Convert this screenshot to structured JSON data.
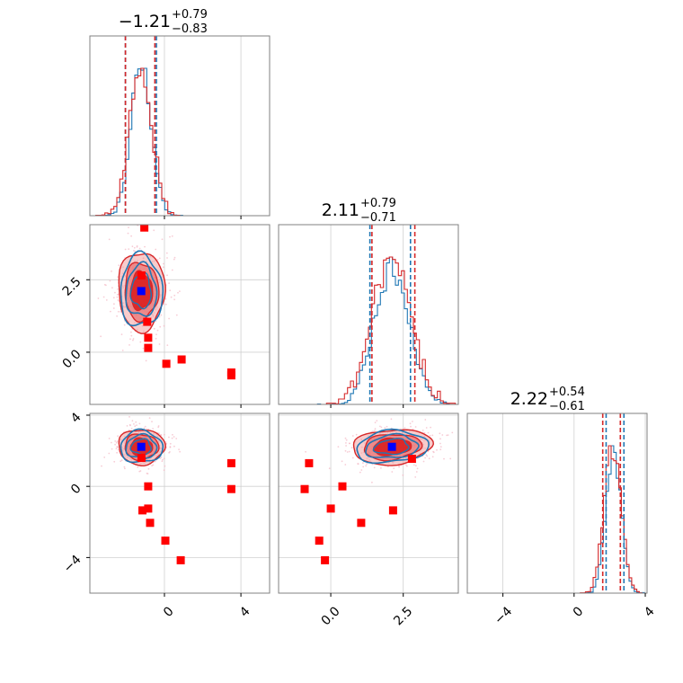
{
  "colors": {
    "blue": "#1f77b4",
    "red": "#d62728",
    "red_fill_light": "#f2a2a2",
    "red_fill_dark": "#d91f1f",
    "truth_square": "#ff0000",
    "truth_center": "#0000ff"
  },
  "chart_data": [
    {
      "type": "histogram",
      "panel": "marginal-param-1",
      "title_value": "−1.21",
      "title_plus": "+0.79",
      "title_minus": "−0.83",
      "xlim": [
        -3.9,
        5.5
      ],
      "quantile_lines_blue": [
        -2.04,
        -0.42
      ],
      "quantile_lines_red": [
        -2.04,
        -0.5
      ],
      "xticks": [
        0,
        4
      ]
    },
    {
      "type": "histogram",
      "panel": "marginal-param-2",
      "title_value": "2.11",
      "title_plus": "+0.79",
      "title_minus": "−0.71",
      "xlim": [
        -1.8,
        4.4
      ],
      "quantile_lines_blue": [
        1.35,
        2.75
      ],
      "quantile_lines_red": [
        1.42,
        2.9
      ],
      "xticks": [
        0.0,
        2.5
      ]
    },
    {
      "type": "histogram",
      "panel": "marginal-param-3",
      "title_value": "2.22",
      "title_plus": "+0.54",
      "title_minus": "−0.61",
      "xlim": [
        -6.0,
        4.1
      ],
      "quantile_lines_blue": [
        1.8,
        2.8
      ],
      "quantile_lines_red": [
        1.61,
        2.6
      ],
      "xticks": [
        -4,
        0,
        4
      ]
    },
    {
      "type": "scatter",
      "panel": "joint-param-1-vs-2",
      "xlim": [
        -3.9,
        5.5
      ],
      "ylim": [
        -1.8,
        4.4
      ],
      "yticks": [
        0.0,
        2.5
      ],
      "ytick_labels": [
        "0.0",
        "2.5"
      ],
      "center": [
        -1.21,
        2.11
      ],
      "truth_points": [
        [
          -1.2,
          2.65
        ],
        [
          -0.9,
          1.05
        ],
        [
          -0.85,
          0.5
        ],
        [
          -0.85,
          0.15
        ],
        [
          0.1,
          -0.4
        ],
        [
          0.9,
          -0.25
        ],
        [
          3.5,
          -0.7
        ],
        [
          3.5,
          -0.8
        ],
        [
          -1.05,
          4.3
        ]
      ]
    },
    {
      "type": "scatter",
      "panel": "joint-param-1-vs-3",
      "xlim": [
        -3.9,
        5.5
      ],
      "ylim": [
        -6.0,
        4.1
      ],
      "yticks": [
        -4,
        0,
        4
      ],
      "ytick_labels": [
        "−4",
        "0",
        "4"
      ],
      "center": [
        -1.21,
        2.22
      ],
      "truth_points": [
        [
          -1.2,
          1.6
        ],
        [
          -0.85,
          0.0
        ],
        [
          -0.85,
          -1.25
        ],
        [
          -1.15,
          -1.35
        ],
        [
          -0.75,
          -2.05
        ],
        [
          0.05,
          -3.05
        ],
        [
          0.85,
          -4.15
        ],
        [
          3.5,
          1.3
        ],
        [
          3.5,
          -0.15
        ]
      ]
    },
    {
      "type": "scatter",
      "panel": "joint-param-2-vs-3",
      "xlim": [
        -1.8,
        4.4
      ],
      "ylim": [
        -6.0,
        4.1
      ],
      "center": [
        2.11,
        2.22
      ],
      "truth_points": [
        [
          -0.75,
          1.3
        ],
        [
          -0.9,
          -0.15
        ],
        [
          0.4,
          0.0
        ],
        [
          0.0,
          -1.25
        ],
        [
          1.05,
          -2.05
        ],
        [
          2.15,
          -1.35
        ],
        [
          -0.4,
          -3.05
        ],
        [
          -0.2,
          -4.15
        ],
        [
          2.8,
          1.55
        ]
      ]
    }
  ],
  "xtick_labels": {
    "col1": [
      "0",
      "4"
    ],
    "col2": [
      "0.0",
      "2.5"
    ],
    "col3": [
      "−4",
      "0",
      "4"
    ]
  }
}
